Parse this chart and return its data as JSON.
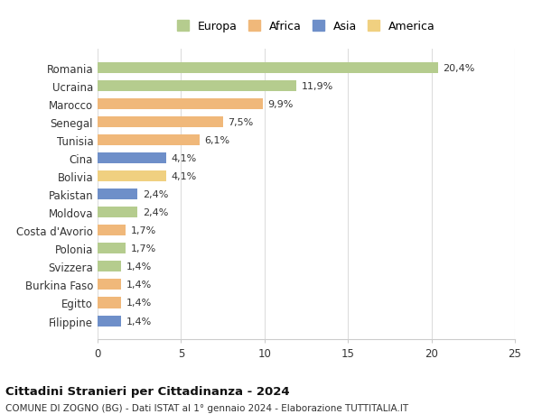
{
  "categories": [
    "Romania",
    "Ucraina",
    "Marocco",
    "Senegal",
    "Tunisia",
    "Cina",
    "Bolivia",
    "Pakistan",
    "Moldova",
    "Costa d'Avorio",
    "Polonia",
    "Svizzera",
    "Burkina Faso",
    "Egitto",
    "Filippine"
  ],
  "values": [
    20.4,
    11.9,
    9.9,
    7.5,
    6.1,
    4.1,
    4.1,
    2.4,
    2.4,
    1.7,
    1.7,
    1.4,
    1.4,
    1.4,
    1.4
  ],
  "labels": [
    "20,4%",
    "11,9%",
    "9,9%",
    "7,5%",
    "6,1%",
    "4,1%",
    "4,1%",
    "2,4%",
    "2,4%",
    "1,7%",
    "1,7%",
    "1,4%",
    "1,4%",
    "1,4%",
    "1,4%"
  ],
  "continents": [
    "Europa",
    "Europa",
    "Africa",
    "Africa",
    "Africa",
    "Asia",
    "America",
    "Asia",
    "Europa",
    "Africa",
    "Europa",
    "Europa",
    "Africa",
    "Africa",
    "Asia"
  ],
  "continent_colors": {
    "Europa": "#b5cc8e",
    "Africa": "#f0b87a",
    "Asia": "#6e8fc9",
    "America": "#f0d080"
  },
  "legend_order": [
    "Europa",
    "Africa",
    "Asia",
    "America"
  ],
  "title": "Cittadini Stranieri per Cittadinanza - 2024",
  "subtitle": "COMUNE DI ZOGNO (BG) - Dati ISTAT al 1° gennaio 2024 - Elaborazione TUTTITALIA.IT",
  "xlim": [
    0,
    25
  ],
  "xticks": [
    0,
    5,
    10,
    15,
    20,
    25
  ],
  "background_color": "#ffffff",
  "grid_color": "#dddddd"
}
